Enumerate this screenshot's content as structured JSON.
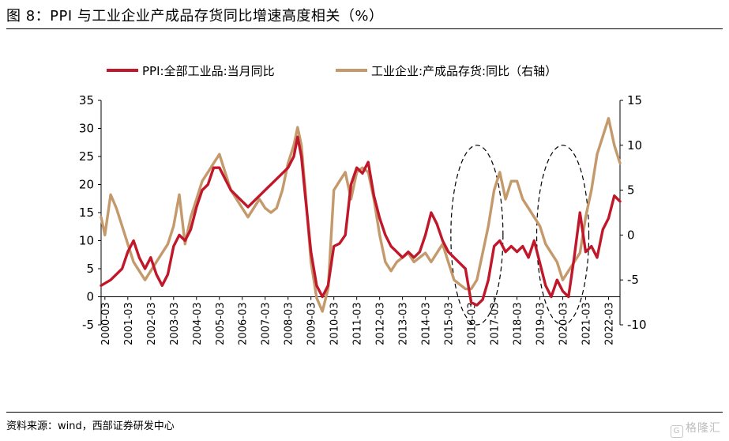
{
  "title": "图 8：PPI 与工业企业产成品存货同比增速高度相关（%）",
  "source": "资料来源：wind，西部证券研发中心",
  "watermark": "格隆汇",
  "chart_data": {
    "type": "line",
    "legend_position": "top",
    "y_left": {
      "min": -5,
      "max": 35,
      "ticks": [
        -5,
        0,
        5,
        10,
        15,
        20,
        25,
        30,
        35
      ]
    },
    "y_right": {
      "min": -10,
      "max": 15,
      "ticks": [
        -10,
        -5,
        0,
        5,
        10,
        15
      ]
    },
    "x_range": [
      "2000-01",
      "2022-09"
    ],
    "x_ticks": [
      "2000-03",
      "2001-03",
      "2002-03",
      "2003-03",
      "2004-03",
      "2005-03",
      "2006-03",
      "2007-03",
      "2008-03",
      "2009-03",
      "2010-03",
      "2011-03",
      "2012-03",
      "2013-03",
      "2014-03",
      "2015-03",
      "2016-03",
      "2017-03",
      "2018-03",
      "2019-03",
      "2020-03",
      "2021-03",
      "2022-03"
    ],
    "annotations": [
      {
        "type": "dashed-ellipse",
        "center": "2016-06",
        "y_left_range": [
          -5,
          27
        ]
      },
      {
        "type": "dashed-ellipse",
        "center": "2020-03",
        "y_left_range": [
          -5,
          27
        ]
      }
    ],
    "series": [
      {
        "name": "PPI:全部工业品:当月同比",
        "axis": "left",
        "color": "#c0182a",
        "points": [
          [
            "2000-01",
            2
          ],
          [
            "2000-06",
            3
          ],
          [
            "2000-12",
            5
          ],
          [
            "2001-03",
            8
          ],
          [
            "2001-06",
            10
          ],
          [
            "2001-09",
            7
          ],
          [
            "2001-12",
            5
          ],
          [
            "2002-03",
            7
          ],
          [
            "2002-06",
            4
          ],
          [
            "2002-09",
            2
          ],
          [
            "2002-12",
            4
          ],
          [
            "2003-03",
            9
          ],
          [
            "2003-06",
            11
          ],
          [
            "2003-09",
            10
          ],
          [
            "2003-12",
            12
          ],
          [
            "2004-03",
            16
          ],
          [
            "2004-06",
            19
          ],
          [
            "2004-09",
            20
          ],
          [
            "2004-12",
            23
          ],
          [
            "2005-03",
            23
          ],
          [
            "2005-06",
            21
          ],
          [
            "2005-09",
            19
          ],
          [
            "2005-12",
            18
          ],
          [
            "2006-03",
            17
          ],
          [
            "2006-06",
            16
          ],
          [
            "2006-09",
            17
          ],
          [
            "2006-12",
            18
          ],
          [
            "2007-03",
            19
          ],
          [
            "2007-06",
            20
          ],
          [
            "2007-09",
            21
          ],
          [
            "2007-12",
            22
          ],
          [
            "2008-03",
            23
          ],
          [
            "2008-06",
            25
          ],
          [
            "2008-08",
            28.5
          ],
          [
            "2008-10",
            25
          ],
          [
            "2008-12",
            18
          ],
          [
            "2009-03",
            8
          ],
          [
            "2009-06",
            2
          ],
          [
            "2009-09",
            0
          ],
          [
            "2009-12",
            2
          ],
          [
            "2010-03",
            9
          ],
          [
            "2010-06",
            9.5
          ],
          [
            "2010-09",
            11
          ],
          [
            "2010-12",
            20
          ],
          [
            "2011-03",
            23
          ],
          [
            "2011-06",
            22
          ],
          [
            "2011-09",
            24
          ],
          [
            "2011-12",
            18
          ],
          [
            "2012-03",
            14
          ],
          [
            "2012-06",
            11
          ],
          [
            "2012-09",
            9
          ],
          [
            "2012-12",
            8
          ],
          [
            "2013-03",
            7
          ],
          [
            "2013-06",
            8
          ],
          [
            "2013-09",
            7
          ],
          [
            "2013-12",
            8
          ],
          [
            "2014-03",
            11
          ],
          [
            "2014-06",
            15
          ],
          [
            "2014-09",
            13
          ],
          [
            "2014-12",
            10
          ],
          [
            "2015-03",
            8
          ],
          [
            "2015-06",
            7
          ],
          [
            "2015-09",
            6
          ],
          [
            "2015-12",
            5
          ],
          [
            "2016-03",
            -1
          ],
          [
            "2016-06",
            -1.5
          ],
          [
            "2016-09",
            -0.5
          ],
          [
            "2016-12",
            3
          ],
          [
            "2017-03",
            9
          ],
          [
            "2017-06",
            10
          ],
          [
            "2017-09",
            8
          ],
          [
            "2017-12",
            9
          ],
          [
            "2018-03",
            8
          ],
          [
            "2018-06",
            9
          ],
          [
            "2018-09",
            7
          ],
          [
            "2018-12",
            10
          ],
          [
            "2019-03",
            6
          ],
          [
            "2019-06",
            2
          ],
          [
            "2019-09",
            0
          ],
          [
            "2019-12",
            3
          ],
          [
            "2020-03",
            1
          ],
          [
            "2020-06",
            0
          ],
          [
            "2020-09",
            7
          ],
          [
            "2020-12",
            15
          ],
          [
            "2021-03",
            8
          ],
          [
            "2021-06",
            9
          ],
          [
            "2021-09",
            7
          ],
          [
            "2021-12",
            12
          ],
          [
            "2022-03",
            14
          ],
          [
            "2022-06",
            18
          ],
          [
            "2022-09",
            17
          ]
        ]
      },
      {
        "name": "工业企业:产成品存货:同比（右轴）",
        "axis": "right",
        "color": "#c49a6c",
        "points": [
          [
            "2000-01",
            2
          ],
          [
            "2000-03",
            0
          ],
          [
            "2000-06",
            4.5
          ],
          [
            "2000-09",
            3
          ],
          [
            "2000-12",
            1
          ],
          [
            "2001-03",
            -1
          ],
          [
            "2001-06",
            -3
          ],
          [
            "2001-09",
            -4
          ],
          [
            "2001-12",
            -5
          ],
          [
            "2002-03",
            -4
          ],
          [
            "2002-06",
            -3
          ],
          [
            "2002-09",
            -2
          ],
          [
            "2002-12",
            -1
          ],
          [
            "2003-03",
            1
          ],
          [
            "2003-06",
            4.5
          ],
          [
            "2003-09",
            -1
          ],
          [
            "2003-12",
            2
          ],
          [
            "2004-03",
            4
          ],
          [
            "2004-06",
            6
          ],
          [
            "2004-09",
            7
          ],
          [
            "2004-12",
            8
          ],
          [
            "2005-03",
            9
          ],
          [
            "2005-06",
            7
          ],
          [
            "2005-09",
            5
          ],
          [
            "2005-12",
            4
          ],
          [
            "2006-03",
            3
          ],
          [
            "2006-06",
            2
          ],
          [
            "2006-09",
            3
          ],
          [
            "2006-12",
            4
          ],
          [
            "2007-03",
            3
          ],
          [
            "2007-06",
            2.5
          ],
          [
            "2007-09",
            3
          ],
          [
            "2007-12",
            5
          ],
          [
            "2008-03",
            8
          ],
          [
            "2008-06",
            10
          ],
          [
            "2008-08",
            12
          ],
          [
            "2008-10",
            10
          ],
          [
            "2008-12",
            5
          ],
          [
            "2009-03",
            -3
          ],
          [
            "2009-06",
            -7
          ],
          [
            "2009-09",
            -8.5
          ],
          [
            "2009-12",
            -6
          ],
          [
            "2010-03",
            5
          ],
          [
            "2010-06",
            6
          ],
          [
            "2010-09",
            7
          ],
          [
            "2010-12",
            4
          ],
          [
            "2011-03",
            7
          ],
          [
            "2011-06",
            7.5
          ],
          [
            "2011-09",
            7
          ],
          [
            "2011-12",
            4
          ],
          [
            "2012-03",
            0
          ],
          [
            "2012-06",
            -3
          ],
          [
            "2012-09",
            -4
          ],
          [
            "2012-12",
            -3
          ],
          [
            "2013-03",
            -2.5
          ],
          [
            "2013-06",
            -2
          ],
          [
            "2013-09",
            -3
          ],
          [
            "2013-12",
            -2.5
          ],
          [
            "2014-03",
            -2
          ],
          [
            "2014-06",
            -3
          ],
          [
            "2014-09",
            -2
          ],
          [
            "2014-12",
            -1
          ],
          [
            "2015-03",
            -3
          ],
          [
            "2015-06",
            -5
          ],
          [
            "2015-09",
            -5.5
          ],
          [
            "2015-12",
            -6
          ],
          [
            "2016-03",
            -6
          ],
          [
            "2016-06",
            -5
          ],
          [
            "2016-09",
            -2
          ],
          [
            "2016-12",
            1
          ],
          [
            "2017-03",
            5
          ],
          [
            "2017-06",
            7
          ],
          [
            "2017-09",
            4
          ],
          [
            "2017-12",
            6
          ],
          [
            "2018-03",
            6
          ],
          [
            "2018-06",
            4
          ],
          [
            "2018-09",
            3
          ],
          [
            "2018-12",
            2
          ],
          [
            "2019-03",
            1
          ],
          [
            "2019-06",
            -1
          ],
          [
            "2019-09",
            -2
          ],
          [
            "2019-12",
            -3
          ],
          [
            "2020-03",
            -5
          ],
          [
            "2020-06",
            -4
          ],
          [
            "2020-09",
            -3
          ],
          [
            "2020-12",
            -2
          ],
          [
            "2021-03",
            2
          ],
          [
            "2021-06",
            5
          ],
          [
            "2021-09",
            9
          ],
          [
            "2021-12",
            11
          ],
          [
            "2022-03",
            13
          ],
          [
            "2022-06",
            10
          ],
          [
            "2022-09",
            8
          ]
        ]
      }
    ]
  }
}
